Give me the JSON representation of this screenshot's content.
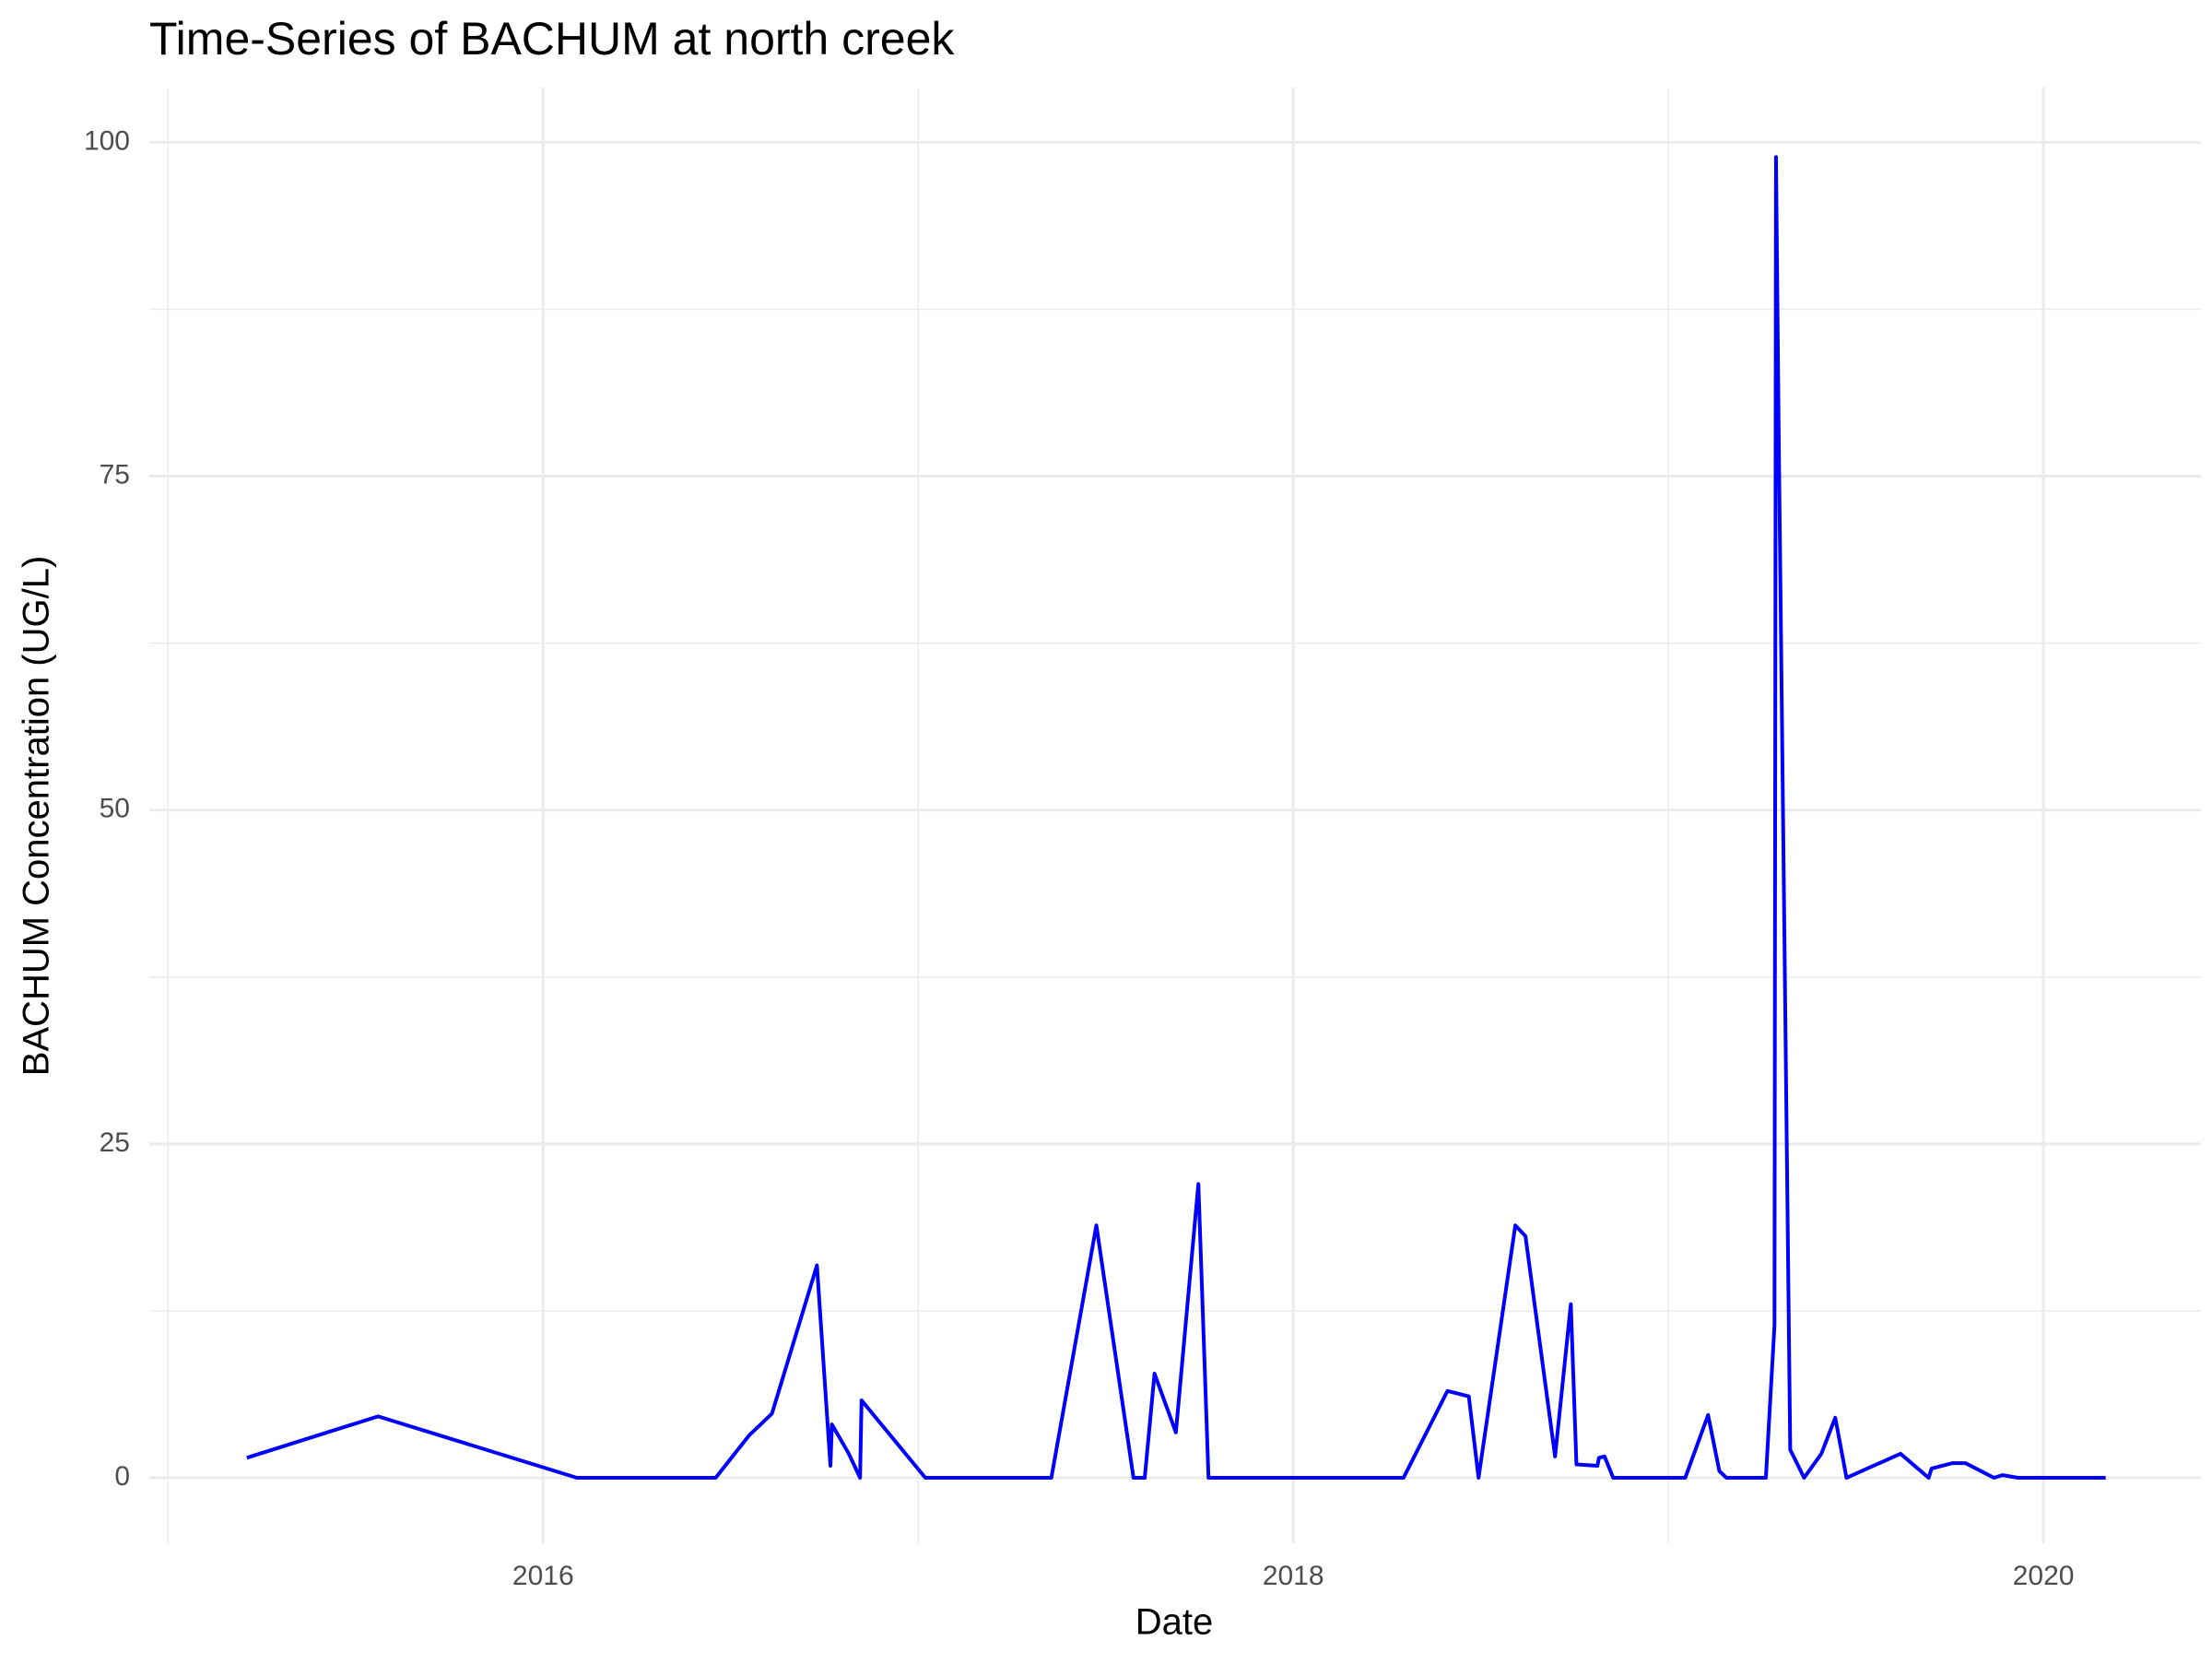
{
  "chart_data": {
    "type": "line",
    "title": "Time-Series of BACHUM at north creek",
    "x_label": "Date",
    "y_label": "BACHUM Concentration (UG/L)",
    "x": [
      2015.21,
      2015.56,
      2016.09,
      2016.46,
      2016.55,
      2016.61,
      2016.73,
      2016.766,
      2016.77,
      2016.815,
      2016.845,
      2016.849,
      2017.019,
      2017.355,
      2017.475,
      2017.574,
      2017.604,
      2017.63,
      2017.687,
      2017.747,
      2017.774,
      2018.294,
      2018.411,
      2018.468,
      2018.494,
      2018.592,
      2018.619,
      2018.698,
      2018.74,
      2018.755,
      2018.811,
      2018.815,
      2018.83,
      2018.853,
      2019.045,
      2019.106,
      2019.136,
      2019.155,
      2019.26,
      2019.283,
      2019.287,
      2019.294,
      2019.325,
      2019.362,
      2019.408,
      2019.445,
      2019.475,
      2019.619,
      2019.694,
      2019.702,
      2019.758,
      2019.792,
      2019.868,
      2019.891,
      2019.932,
      2020.166
    ],
    "series": [
      {
        "name": "BACHUM",
        "color": "#0000ff",
        "values": [
          1.5,
          4.6,
          0,
          0,
          3.2,
          4.8,
          15.9,
          0.9,
          4.0,
          1.8,
          0,
          5.8,
          0,
          0,
          18.9,
          0,
          0,
          7.8,
          3.4,
          22.0,
          0,
          0,
          6.5,
          6.1,
          0,
          18.9,
          18.1,
          1.6,
          13.0,
          1.0,
          0.9,
          1.5,
          1.6,
          0,
          0,
          4.7,
          0.5,
          0,
          0,
          11.4,
          98.9,
          78.9,
          2.1,
          0,
          1.8,
          4.5,
          0,
          1.8,
          0,
          0.7,
          1.1,
          1.1,
          0,
          0.2,
          0,
          0
        ]
      }
    ],
    "xlim": [
      2014.95,
      2020.42
    ],
    "ylim": [
      -4.9,
      104.1
    ],
    "xticks": [
      2016,
      2018,
      2020
    ],
    "yticks": [
      0,
      25,
      50,
      75,
      100
    ],
    "x_minor_ticks": [
      2015,
      2017,
      2019
    ],
    "y_minor_ticks": [
      12.5,
      37.5,
      62.5,
      87.5
    ],
    "grid": true
  }
}
